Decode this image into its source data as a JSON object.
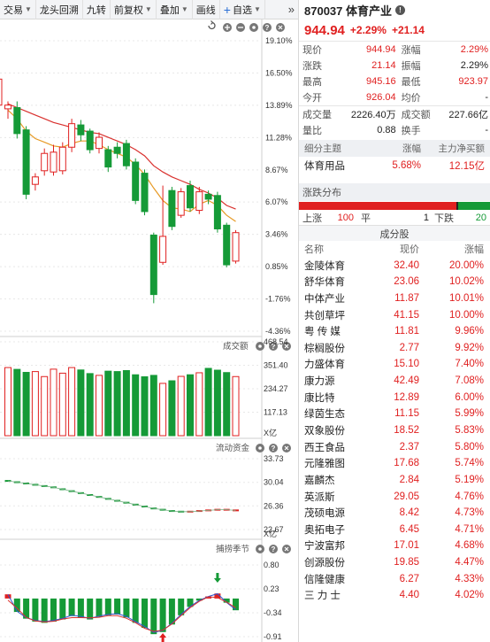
{
  "toolbar": {
    "items": [
      {
        "label": "交易",
        "has_caret": true
      },
      {
        "label": "龙头回溯",
        "has_caret": false
      },
      {
        "label": "九转",
        "has_caret": false
      },
      {
        "label": "前复权",
        "has_caret": true
      },
      {
        "label": "叠加",
        "has_caret": true
      },
      {
        "label": "画线",
        "has_caret": false
      },
      {
        "label": "自选",
        "has_caret": true
      }
    ],
    "more": "»"
  },
  "panels": {
    "volume_title": "成交额",
    "flow_title": "流动资金",
    "season_title": "捕捞季节",
    "volume_unit": "X亿",
    "flow_unit": "X亿"
  },
  "axis": {
    "price_ticks": [
      "19.10%",
      "16.50%",
      "13.89%",
      "11.28%",
      "8.67%",
      "6.07%",
      "3.46%",
      "0.85%",
      "-1.76%",
      "-4.36%"
    ],
    "volume_ticks": [
      "468.54",
      "351.40",
      "234.27",
      "117.13"
    ],
    "flow_ticks": [
      "33.73",
      "30.04",
      "26.36",
      "22.67"
    ],
    "season_ticks": [
      "0.80",
      "0.23",
      "-0.34",
      "-0.91"
    ]
  },
  "stock": {
    "code_name": "870037 体育产业",
    "price": "944.94",
    "change_pct": "+2.29%",
    "change": "+21.14"
  },
  "quote": [
    {
      "l1": "现价",
      "v1": "944.94",
      "c1": "red",
      "l2": "涨幅",
      "v2": "2.29%",
      "c2": "red"
    },
    {
      "l1": "涨跌",
      "v1": "21.14",
      "c1": "red",
      "l2": "振幅",
      "v2": "2.29%",
      "c2": "dark"
    },
    {
      "l1": "最高",
      "v1": "945.16",
      "c1": "red",
      "l2": "最低",
      "v2": "923.97",
      "c2": "red"
    },
    {
      "l1": "今开",
      "v1": "926.04",
      "c1": "red",
      "l2": "均价",
      "v2": "-",
      "c2": "dark"
    },
    {
      "l1": "成交量",
      "v1": "2226.40万",
      "c1": "dark",
      "l2": "成交额",
      "v2": "227.66亿",
      "c2": "dark"
    },
    {
      "l1": "量比",
      "v1": "0.88",
      "c1": "dark",
      "l2": "换手",
      "v2": "-",
      "c2": "dark"
    }
  ],
  "sub_theme": {
    "headers": [
      "细分主题",
      "涨幅",
      "主力净买额"
    ],
    "name": "体育用品",
    "pct": "5.68%",
    "net": "12.15亿"
  },
  "distribution": {
    "title": "涨跌分布",
    "up_label": "上涨",
    "up": "100",
    "flat_label": "平",
    "flat": "1",
    "down_label": "下跌",
    "down": "20",
    "up_frac": 0.826,
    "flat_frac": 0.008,
    "down_frac": 0.166
  },
  "components": {
    "title": "成分股",
    "headers": [
      "名称",
      "现价",
      "涨幅"
    ],
    "rows": [
      {
        "name": "金陵体育",
        "price": "32.40",
        "pct": "20.00%"
      },
      {
        "name": "舒华体育",
        "price": "23.06",
        "pct": "10.02%"
      },
      {
        "name": "中体产业",
        "price": "11.87",
        "pct": "10.01%"
      },
      {
        "name": "共创草坪",
        "price": "41.15",
        "pct": "10.00%"
      },
      {
        "name": "粤 传 媒",
        "price": "11.81",
        "pct": "9.96%"
      },
      {
        "name": "棕榈股份",
        "price": "2.77",
        "pct": "9.92%"
      },
      {
        "name": "力盛体育",
        "price": "15.10",
        "pct": "7.40%"
      },
      {
        "name": "康力源",
        "price": "42.49",
        "pct": "7.08%"
      },
      {
        "name": "康比特",
        "price": "12.89",
        "pct": "6.00%"
      },
      {
        "name": "绿茵生态",
        "price": "11.15",
        "pct": "5.99%"
      },
      {
        "name": "双象股份",
        "price": "18.52",
        "pct": "5.83%"
      },
      {
        "name": "西王食品",
        "price": "2.37",
        "pct": "5.80%"
      },
      {
        "name": "元隆雅图",
        "price": "17.68",
        "pct": "5.74%"
      },
      {
        "name": "嘉麟杰",
        "price": "2.84",
        "pct": "5.19%"
      },
      {
        "name": "英派斯",
        "price": "29.05",
        "pct": "4.76%"
      },
      {
        "name": "茂硕电源",
        "price": "8.42",
        "pct": "4.73%"
      },
      {
        "name": "奥拓电子",
        "price": "6.45",
        "pct": "4.71%"
      },
      {
        "name": "宁波富邦",
        "price": "17.01",
        "pct": "4.68%"
      },
      {
        "name": "创源股份",
        "price": "19.85",
        "pct": "4.47%"
      },
      {
        "name": "信隆健康",
        "price": "6.27",
        "pct": "4.33%"
      },
      {
        "name": "三 力 士",
        "price": "4.40",
        "pct": "4.02%"
      }
    ]
  },
  "chart_data": [
    {
      "type": "candlestick",
      "ylim": [
        -4.36,
        19.1
      ],
      "unit": "%",
      "candles": [
        {
          "o": 13.6,
          "c": 13.9,
          "h": 14.2,
          "l": 12.8
        },
        {
          "o": 13.7,
          "c": 11.6,
          "h": 14.2,
          "l": 11.2
        },
        {
          "o": 11.9,
          "c": 6.7,
          "h": 12.2,
          "l": 6.3
        },
        {
          "o": 7.5,
          "c": 8.1,
          "h": 8.4,
          "l": 7.0
        },
        {
          "o": 8.6,
          "c": 10.0,
          "h": 10.4,
          "l": 8.2
        },
        {
          "o": 8.5,
          "c": 10.1,
          "h": 10.7,
          "l": 8.2
        },
        {
          "o": 8.6,
          "c": 10.5,
          "h": 10.9,
          "l": 8.3
        },
        {
          "o": 10.5,
          "c": 12.4,
          "h": 12.8,
          "l": 10.1
        },
        {
          "o": 12.3,
          "c": 11.5,
          "h": 12.7,
          "l": 11.0
        },
        {
          "o": 11.8,
          "c": 10.3,
          "h": 12.0,
          "l": 10.0
        },
        {
          "o": 10.4,
          "c": 11.3,
          "h": 11.7,
          "l": 10.0
        },
        {
          "o": 10.3,
          "c": 8.9,
          "h": 10.6,
          "l": 8.5
        },
        {
          "o": 10.5,
          "c": 10.0,
          "h": 10.9,
          "l": 9.6
        },
        {
          "o": 10.8,
          "c": 9.0,
          "h": 11.1,
          "l": 8.7
        },
        {
          "o": 9.3,
          "c": 6.2,
          "h": 9.6,
          "l": 5.9
        },
        {
          "o": 8.4,
          "c": 5.3,
          "h": 8.7,
          "l": 5.0
        },
        {
          "o": 3.4,
          "c": -1.4,
          "h": 3.6,
          "l": -2.1
        },
        {
          "o": 1.2,
          "c": 3.3,
          "h": 7.4,
          "l": 1.0
        },
        {
          "o": 7.0,
          "c": 4.1,
          "h": 7.3,
          "l": 3.8
        },
        {
          "o": 5.0,
          "c": 6.9,
          "h": 7.2,
          "l": 4.8
        },
        {
          "o": 7.4,
          "c": 5.6,
          "h": 7.8,
          "l": 5.3
        },
        {
          "o": 5.4,
          "c": 6.9,
          "h": 7.3,
          "l": 5.1
        },
        {
          "o": 6.7,
          "c": 6.3,
          "h": 7.0,
          "l": 5.9
        },
        {
          "o": 6.6,
          "c": 3.9,
          "h": 6.9,
          "l": 3.6
        },
        {
          "o": 4.2,
          "c": 1.0,
          "h": 4.4,
          "l": 0.8
        },
        {
          "o": 1.3,
          "c": 3.6,
          "h": 3.8,
          "l": 1.1
        }
      ],
      "ma_red": [
        14.0,
        13.7,
        13.4,
        13.1,
        12.8,
        12.5,
        12.3,
        12.1,
        11.9,
        11.7,
        11.6,
        11.3,
        11.0,
        10.7,
        10.3,
        9.8,
        9.0,
        8.5,
        8.1,
        7.8,
        7.5,
        7.1,
        6.8,
        6.4,
        5.8,
        5.5
      ],
      "ma_orange": [
        13.5,
        12.8,
        11.8,
        11.2,
        10.9,
        10.6,
        10.5,
        10.8,
        11.0,
        11.0,
        10.7,
        10.3,
        10.0,
        9.7,
        9.1,
        8.3,
        7.2,
        6.2,
        5.6,
        5.5,
        5.3,
        5.9,
        6.2,
        5.8,
        5.0,
        4.5
      ]
    },
    {
      "type": "bar",
      "title": "成交额",
      "ylim": [
        0,
        468.54
      ],
      "values": [
        340,
        331,
        316,
        320,
        295,
        332,
        312,
        340,
        328,
        310,
        301,
        322,
        320,
        325,
        304,
        294,
        301,
        261,
        274,
        296,
        304,
        314,
        336,
        327,
        315,
        295
      ],
      "up": [
        1,
        0,
        0,
        1,
        1,
        1,
        1,
        1,
        0,
        0,
        1,
        0,
        0,
        0,
        0,
        0,
        0,
        1,
        0,
        1,
        0,
        1,
        0,
        0,
        0,
        1
      ]
    },
    {
      "type": "area",
      "title": "流动资金",
      "ylim": [
        22.67,
        33.73
      ],
      "values": [
        30.4,
        30.2,
        30.0,
        29.8,
        29.6,
        29.4,
        29.1,
        28.8,
        28.5,
        28.2,
        27.9,
        27.6,
        27.3,
        27.0,
        26.7,
        26.4,
        26.1,
        25.9,
        25.7,
        25.6,
        25.6,
        25.7,
        25.8,
        25.9,
        25.9,
        25.8
      ]
    },
    {
      "type": "bar",
      "title": "捕捞季节",
      "ylim": [
        -0.91,
        0.8
      ],
      "values": [
        0.1,
        -0.32,
        -0.48,
        -0.55,
        -0.58,
        -0.55,
        -0.5,
        -0.42,
        -0.45,
        -0.5,
        -0.44,
        -0.4,
        -0.38,
        -0.45,
        -0.58,
        -0.7,
        -0.85,
        -0.8,
        -0.62,
        -0.4,
        -0.2,
        -0.05,
        0.05,
        0.12,
        -0.1,
        -0.28
      ]
    }
  ]
}
